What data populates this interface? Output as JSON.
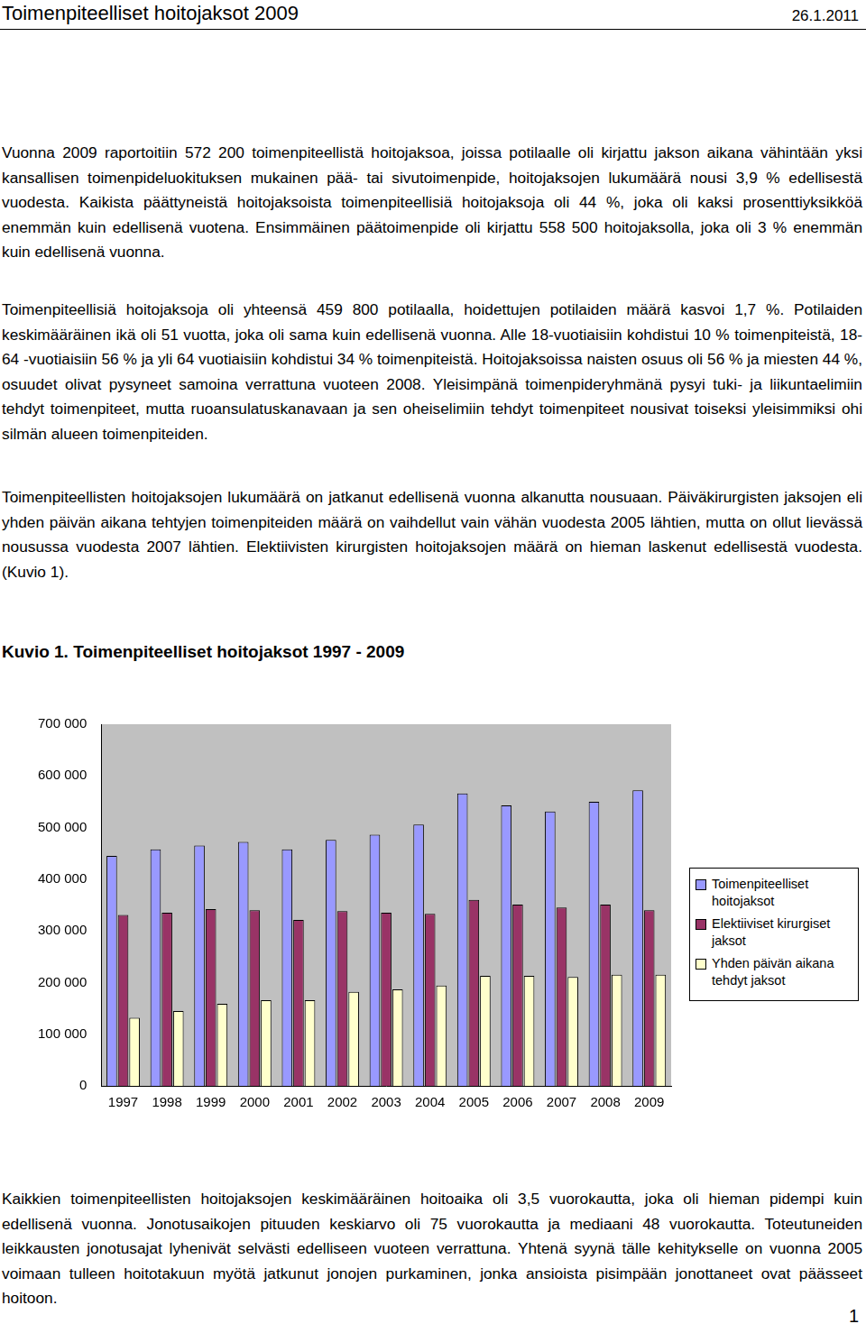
{
  "header": {
    "title": "Toimenpiteelliset hoitojaksot 2009",
    "date": "26.1.2011"
  },
  "paragraphs": [
    "Vuonna 2009 raportoitiin 572 200 toimenpiteellistä hoitojaksoa, joissa potilaalle oli kirjattu jakson aikana vähintään yksi kansallisen toimenpideluokituksen mukainen pää- tai sivutoimenpide, hoitojaksojen lukumäärä nousi 3,9 % edellisestä vuodesta. Kaikista päättyneistä hoitojaksoista toimenpiteellisiä hoitojaksoja oli 44 %, joka oli kaksi prosenttiyksikköä enemmän kuin edellisenä vuotena. Ensimmäinen päätoimenpide oli kirjattu 558 500 hoitojaksolla, joka oli 3 % enemmän kuin edellisenä vuonna.",
    "Toimenpiteellisiä hoitojaksoja oli yhteensä 459 800 potilaalla, hoidettujen potilaiden määrä kasvoi 1,7 %. Potilaiden keskimääräinen ikä oli 51 vuotta, joka oli sama kuin edellisenä vuonna. Alle 18-vuotiaisiin kohdistui 10 % toimenpiteistä, 18-64 -vuotiaisiin 56 % ja yli 64 vuotiaisiin kohdistui 34 % toimenpiteistä. Hoitojaksoissa naisten osuus oli 56 % ja miesten 44 %, osuudet olivat pysyneet samoina verrattuna vuoteen 2008. Yleisimpänä toimenpideryhmänä pysyi tuki- ja liikuntaelimiin tehdyt toimenpiteet, mutta ruoansulatuskanavaan ja sen oheiselimiin tehdyt toimenpiteet nousivat toiseksi yleisimmiksi ohi silmän alueen toimenpiteiden.",
    "Toimenpiteellisten hoitojaksojen lukumäärä on jatkanut edellisenä vuonna alkanutta nousuaan. Päiväkirurgisten jaksojen eli yhden päivän aikana tehtyjen toimenpiteiden määrä on vaihdellut vain vähän vuodesta 2005 lähtien, mutta on ollut lievässä nousussa vuodesta 2007 lähtien. Elektiivisten kirurgisten hoitojaksojen määrä on hieman laskenut edellisestä vuodesta. (Kuvio 1)."
  ],
  "figure_title": "Kuvio 1. Toimenpiteelliset hoitojaksot 1997 - 2009",
  "chart_data": {
    "type": "bar",
    "categories": [
      "1997",
      "1998",
      "1999",
      "2000",
      "2001",
      "2002",
      "2003",
      "2004",
      "2005",
      "2006",
      "2007",
      "2008",
      "2009"
    ],
    "series": [
      {
        "name": "Toimenpiteelliset hoitojaksot",
        "color": "#9999ff",
        "values": [
          445000,
          458000,
          465000,
          472000,
          458000,
          476000,
          486000,
          506000,
          566000,
          543000,
          531000,
          550000,
          572000
        ]
      },
      {
        "name": "Elektiiviset kirurgiset jaksot",
        "color": "#993366",
        "values": [
          331000,
          335000,
          342000,
          340000,
          321000,
          338000,
          335000,
          333000,
          360000,
          351000,
          345000,
          351000,
          340000
        ]
      },
      {
        "name": "Yhden päivän aikana tehdyt jaksot",
        "color": "#ffffcc",
        "values": [
          132000,
          145000,
          159000,
          166000,
          166000,
          182000,
          187000,
          194000,
          213000,
          213000,
          211000,
          215000,
          215000
        ]
      }
    ],
    "ylim": [
      0,
      700000
    ],
    "yticks": [
      0,
      {
        "value": 100000,
        "label": "100 000"
      },
      {
        "value": 200000,
        "label": "200 000"
      },
      {
        "value": 300000,
        "label": "300 000"
      },
      {
        "value": 400000,
        "label": "400 000"
      },
      {
        "value": 500000,
        "label": "500 000"
      },
      {
        "value": 600000,
        "label": "600 000"
      },
      {
        "value": 700000,
        "label": "700 000"
      }
    ],
    "grid": false,
    "legend": "right"
  },
  "closing": "Kaikkien toimenpiteellisten hoitojaksojen keskimääräinen hoitoaika oli 3,5 vuorokautta, joka oli hieman pidempi kuin edellisenä vuonna. Jonotusaikojen pituuden keskiarvo oli 75 vuorokautta ja mediaani 48 vuorokautta. Toteutuneiden leikkausten jonotusajat lyhenivät selvästi edelliseen vuoteen verrattuna. Yhtenä syynä tälle kehitykselle on vuonna 2005 voimaan tulleen hoitotakuun myötä jatkunut jonojen purkaminen, jonka ansioista pisimpään jonottaneet ovat päässeet hoitoon.",
  "page_number": "1"
}
